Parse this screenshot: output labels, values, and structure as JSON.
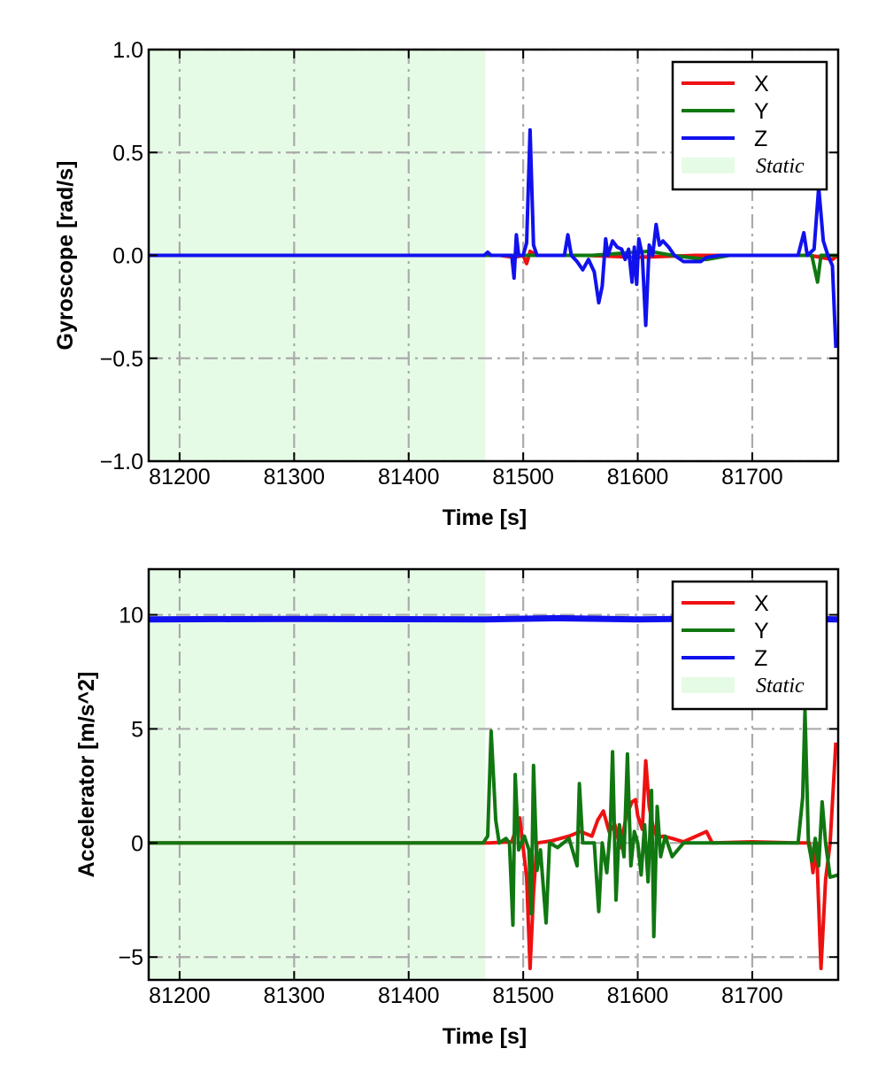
{
  "chart_data": [
    {
      "type": "line",
      "xlabel": "Time [s]",
      "ylabel": "Gyroscope [rad/s]",
      "xlim": [
        81173,
        81775
      ],
      "ylim": [
        -1.0,
        1.0
      ],
      "xticks": [
        81200,
        81300,
        81400,
        81500,
        81600,
        81700
      ],
      "xtick_labels": [
        "81200",
        "81300",
        "81400",
        "81500",
        "81600",
        "81700"
      ],
      "yticks": [
        -1.0,
        -0.5,
        0.0,
        0.5,
        1.0
      ],
      "ytick_labels": [
        "−1.0",
        "−0.5",
        "0.0",
        "0.5",
        "1.0"
      ],
      "grid": true,
      "legend_position": "top-right",
      "static_region": {
        "label": "Static",
        "x_start": 81173,
        "x_end": 81467,
        "color": "#e6fbe6"
      },
      "series": [
        {
          "name": "X",
          "color": "#ee1111",
          "points": [
            [
              81173,
              0.0
            ],
            [
              81470,
              0.0
            ],
            [
              81480,
              0.0
            ],
            [
              81492,
              -0.01
            ],
            [
              81500,
              0.0
            ],
            [
              81503,
              -0.04
            ],
            [
              81506,
              0.02
            ],
            [
              81512,
              0.0
            ],
            [
              81555,
              0.0
            ],
            [
              81600,
              -0.01
            ],
            [
              81650,
              0.0
            ],
            [
              81700,
              0.0
            ],
            [
              81750,
              0.0
            ],
            [
              81770,
              -0.02
            ],
            [
              81775,
              0.0
            ]
          ]
        },
        {
          "name": "Y",
          "color": "#117711",
          "points": [
            [
              81173,
              0.0
            ],
            [
              81480,
              0.0
            ],
            [
              81530,
              0.0
            ],
            [
              81560,
              0.0
            ],
            [
              81610,
              0.02
            ],
            [
              81630,
              0.0
            ],
            [
              81660,
              -0.02
            ],
            [
              81680,
              0.0
            ],
            [
              81752,
              0.0
            ],
            [
              81757,
              -0.13
            ],
            [
              81760,
              0.0
            ],
            [
              81775,
              0.0
            ]
          ]
        },
        {
          "name": "Z",
          "color": "#1111ee",
          "points": [
            [
              81173,
              0.0
            ],
            [
              81466,
              0.0
            ],
            [
              81469,
              0.015
            ],
            [
              81472,
              0.0
            ],
            [
              81490,
              0.0
            ],
            [
              81492,
              -0.11
            ],
            [
              81494,
              0.1
            ],
            [
              81496,
              0.0
            ],
            [
              81500,
              0.0
            ],
            [
              81503,
              0.06
            ],
            [
              81506,
              0.61
            ],
            [
              81509,
              0.05
            ],
            [
              81512,
              0.0
            ],
            [
              81536,
              0.0
            ],
            [
              81539,
              0.1
            ],
            [
              81542,
              0.0
            ],
            [
              81547,
              -0.03
            ],
            [
              81552,
              -0.07
            ],
            [
              81557,
              -0.02
            ],
            [
              81562,
              -0.08
            ],
            [
              81566,
              -0.23
            ],
            [
              81569,
              -0.15
            ],
            [
              81572,
              0.08
            ],
            [
              81574,
              0.0
            ],
            [
              81578,
              0.07
            ],
            [
              81582,
              0.04
            ],
            [
              81586,
              0.03
            ],
            [
              81589,
              -0.02
            ],
            [
              81592,
              0.03
            ],
            [
              81595,
              -0.13
            ],
            [
              81597,
              0.04
            ],
            [
              81599,
              -0.14
            ],
            [
              81601,
              0.08
            ],
            [
              81604,
              0.0
            ],
            [
              81607,
              -0.34
            ],
            [
              81610,
              0.05
            ],
            [
              81613,
              0.0
            ],
            [
              81616,
              0.15
            ],
            [
              81619,
              0.05
            ],
            [
              81622,
              0.07
            ],
            [
              81627,
              0.04
            ],
            [
              81632,
              0.0
            ],
            [
              81640,
              -0.03
            ],
            [
              81655,
              -0.03
            ],
            [
              81660,
              -0.01
            ],
            [
              81672,
              0.0
            ],
            [
              81740,
              0.0
            ],
            [
              81745,
              0.11
            ],
            [
              81748,
              0.0
            ],
            [
              81754,
              0.03
            ],
            [
              81758,
              0.33
            ],
            [
              81762,
              0.07
            ],
            [
              81766,
              0.0
            ],
            [
              81770,
              -0.05
            ],
            [
              81773,
              -0.45
            ]
          ]
        }
      ],
      "legend": [
        {
          "label": "X",
          "color": "#ee1111"
        },
        {
          "label": "Y",
          "color": "#117711"
        },
        {
          "label": "Z",
          "color": "#1111ee"
        },
        {
          "label": "Static",
          "color": "#e6fbe6"
        }
      ]
    },
    {
      "type": "line",
      "xlabel": "Time [s]",
      "ylabel": "Accelerator [m/s^2]",
      "xlim": [
        81173,
        81775
      ],
      "ylim": [
        -6.0,
        12.0
      ],
      "xticks": [
        81200,
        81300,
        81400,
        81500,
        81600,
        81700
      ],
      "xtick_labels": [
        "81200",
        "81300",
        "81400",
        "81500",
        "81600",
        "81700"
      ],
      "yticks": [
        -5,
        0,
        5,
        10
      ],
      "ytick_labels": [
        "−5",
        "0",
        "5",
        "10"
      ],
      "grid": true,
      "legend_position": "top-right",
      "static_region": {
        "label": "Static",
        "x_start": 81173,
        "x_end": 81467,
        "color": "#e6fbe6"
      },
      "series": [
        {
          "name": "Z",
          "color": "#1111ee",
          "points": [
            [
              81173,
              9.8
            ],
            [
              81300,
              9.82
            ],
            [
              81467,
              9.8
            ],
            [
              81530,
              9.85
            ],
            [
              81600,
              9.8
            ],
            [
              81700,
              9.85
            ],
            [
              81775,
              9.8
            ]
          ]
        },
        {
          "name": "X",
          "color": "#ee1111",
          "points": [
            [
              81173,
              0.0
            ],
            [
              81470,
              0.0
            ],
            [
              81490,
              0.05
            ],
            [
              81497,
              1.1
            ],
            [
              81500,
              -0.2
            ],
            [
              81503,
              -1.5
            ],
            [
              81506,
              -5.5
            ],
            [
              81509,
              -2.2
            ],
            [
              81512,
              0.0
            ],
            [
              81525,
              0.1
            ],
            [
              81540,
              0.3
            ],
            [
              81550,
              0.5
            ],
            [
              81560,
              0.3
            ],
            [
              81565,
              1.0
            ],
            [
              81570,
              1.4
            ],
            [
              81575,
              0.5
            ],
            [
              81580,
              0.8
            ],
            [
              81585,
              -0.2
            ],
            [
              81590,
              1.2
            ],
            [
              81595,
              1.8
            ],
            [
              81598,
              1.9
            ],
            [
              81600,
              1.2
            ],
            [
              81604,
              0.6
            ],
            [
              81607,
              3.6
            ],
            [
              81610,
              1.6
            ],
            [
              81613,
              0.8
            ],
            [
              81617,
              0.2
            ],
            [
              81622,
              0.3
            ],
            [
              81630,
              0.2
            ],
            [
              81640,
              0.05
            ],
            [
              81660,
              0.5
            ],
            [
              81665,
              0.0
            ],
            [
              81700,
              0.05
            ],
            [
              81740,
              0.0
            ],
            [
              81750,
              0.0
            ],
            [
              81753,
              -1.3
            ],
            [
              81756,
              0.0
            ],
            [
              81760,
              -5.5
            ],
            [
              81764,
              -1.6
            ],
            [
              81768,
              0.0
            ],
            [
              81773,
              4.4
            ]
          ]
        },
        {
          "name": "Y",
          "color": "#117711",
          "points": [
            [
              81173,
              0.0
            ],
            [
              81465,
              0.0
            ],
            [
              81469,
              0.3
            ],
            [
              81472,
              4.9
            ],
            [
              81476,
              1.0
            ],
            [
              81479,
              0.0
            ],
            [
              81485,
              0.2
            ],
            [
              81488,
              0.0
            ],
            [
              81491,
              -3.6
            ],
            [
              81493,
              3.0
            ],
            [
              81496,
              -0.3
            ],
            [
              81501,
              0.3
            ],
            [
              81505,
              -0.3
            ],
            [
              81507,
              -3.1
            ],
            [
              81509,
              3.4
            ],
            [
              81512,
              -1.2
            ],
            [
              81515,
              -0.3
            ],
            [
              81520,
              -3.5
            ],
            [
              81523,
              0.0
            ],
            [
              81530,
              -0.2
            ],
            [
              81540,
              0.2
            ],
            [
              81547,
              -1.0
            ],
            [
              81549,
              2.6
            ],
            [
              81552,
              0.0
            ],
            [
              81562,
              0.0
            ],
            [
              81566,
              -3.0
            ],
            [
              81569,
              0.0
            ],
            [
              81573,
              -1.3
            ],
            [
              81576,
              0.6
            ],
            [
              81578,
              4.0
            ],
            [
              81581,
              -2.5
            ],
            [
              81584,
              0.8
            ],
            [
              81588,
              -0.6
            ],
            [
              81591,
              3.9
            ],
            [
              81594,
              -1.0
            ],
            [
              81597,
              0.5
            ],
            [
              81600,
              0.0
            ],
            [
              81603,
              -1.4
            ],
            [
              81606,
              0.8
            ],
            [
              81609,
              -1.7
            ],
            [
              81612,
              2.3
            ],
            [
              81614,
              -4.1
            ],
            [
              81617,
              1.6
            ],
            [
              81620,
              -0.6
            ],
            [
              81624,
              0.3
            ],
            [
              81630,
              -0.6
            ],
            [
              81640,
              0.0
            ],
            [
              81700,
              0.0
            ],
            [
              81740,
              0.0
            ],
            [
              81744,
              2.0
            ],
            [
              81746,
              5.8
            ],
            [
              81749,
              0.0
            ],
            [
              81752,
              -0.8
            ],
            [
              81755,
              0.2
            ],
            [
              81758,
              -1.0
            ],
            [
              81761,
              1.8
            ],
            [
              81764,
              0.0
            ],
            [
              81768,
              -1.5
            ],
            [
              81775,
              -1.4
            ]
          ]
        }
      ],
      "legend": [
        {
          "label": "X",
          "color": "#ee1111"
        },
        {
          "label": "Y",
          "color": "#117711"
        },
        {
          "label": "Z",
          "color": "#1111ee"
        },
        {
          "label": "Static",
          "color": "#e6fbe6"
        }
      ]
    }
  ]
}
